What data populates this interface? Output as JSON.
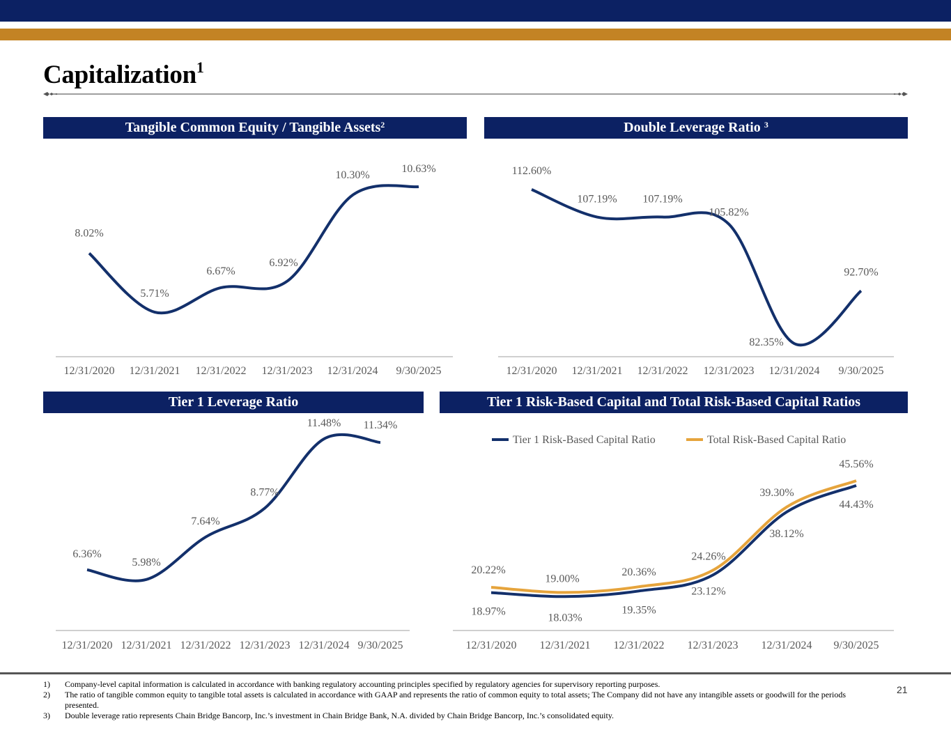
{
  "page": {
    "title": "Capitalization",
    "title_sup": "1",
    "page_number": "21",
    "colors": {
      "navy": "#0c2163",
      "gold": "#c38324",
      "line_navy": "#13306b",
      "line_gold": "#e6a43c"
    }
  },
  "panels": {
    "tce": {
      "title": "Tangible Common Equity / Tangible Assets",
      "sup": "2"
    },
    "dlr": {
      "title": "Double Leverage Ratio",
      "sup": "3"
    },
    "t1l": {
      "title": "Tier 1 Leverage Ratio"
    },
    "rbc": {
      "title": "Tier 1 Risk-Based Capital and Total Risk-Based Capital Ratios"
    }
  },
  "chart_data": [
    {
      "id": "tce",
      "type": "line",
      "title": "Tangible Common Equity / Tangible Assets",
      "categories": [
        "12/31/2020",
        "12/31/2021",
        "12/31/2022",
        "12/31/2023",
        "12/31/2024",
        "9/30/2025"
      ],
      "series": [
        {
          "name": "Tangible Common Equity / Tangible Assets",
          "values": [
            8.02,
            5.71,
            6.67,
            6.92,
            10.3,
            10.63
          ],
          "labels": [
            "8.02%",
            "5.71%",
            "6.67%",
            "6.92%",
            "10.30%",
            "10.63%"
          ]
        }
      ],
      "unit": "%",
      "grid": false,
      "legend": "none"
    },
    {
      "id": "dlr",
      "type": "line",
      "title": "Double Leverage Ratio",
      "categories": [
        "12/31/2020",
        "12/31/2021",
        "12/31/2022",
        "12/31/2023",
        "12/31/2024",
        "9/30/2025"
      ],
      "series": [
        {
          "name": "Double Leverage Ratio",
          "values": [
            112.6,
            107.19,
            107.19,
            105.82,
            82.35,
            92.7
          ],
          "labels": [
            "112.60%",
            "107.19%",
            "107.19%",
            "105.82%",
            "82.35%",
            "92.70%"
          ]
        }
      ],
      "unit": "%",
      "grid": false,
      "legend": "none"
    },
    {
      "id": "t1l",
      "type": "line",
      "title": "Tier 1 Leverage Ratio",
      "categories": [
        "12/31/2020",
        "12/31/2021",
        "12/31/2022",
        "12/31/2023",
        "12/31/2024",
        "9/30/2025"
      ],
      "series": [
        {
          "name": "Tier 1 Leverage Ratio",
          "values": [
            6.36,
            5.98,
            7.64,
            8.77,
            11.48,
            11.34
          ],
          "labels": [
            "6.36%",
            "5.98%",
            "7.64%",
            "8.77%",
            "11.48%",
            "11.34%"
          ]
        }
      ],
      "unit": "%",
      "grid": false,
      "legend": "none"
    },
    {
      "id": "rbc",
      "type": "line",
      "title": "Tier 1 Risk-Based Capital and Total Risk-Based Capital Ratios",
      "categories": [
        "12/31/2020",
        "12/31/2021",
        "12/31/2022",
        "12/31/2023",
        "12/31/2024",
        "9/30/2025"
      ],
      "series": [
        {
          "name": "Tier 1 Risk-Based Capital Ratio",
          "values": [
            18.97,
            18.03,
            19.35,
            23.12,
            38.12,
            44.43
          ],
          "labels": [
            "18.97%",
            "18.03%",
            "19.35%",
            "23.12%",
            "38.12%",
            "44.43%"
          ]
        },
        {
          "name": "Total Risk-Based Capital Ratio",
          "values": [
            20.22,
            19.0,
            20.36,
            24.26,
            39.3,
            45.56
          ],
          "labels": [
            "20.22%",
            "19.00%",
            "20.36%",
            "24.26%",
            "39.30%",
            "45.56%"
          ]
        }
      ],
      "unit": "%",
      "grid": false,
      "legend": "top"
    }
  ],
  "footnotes": [
    {
      "num": "1)",
      "text": "Company-level capital information is calculated in accordance with banking regulatory accounting principles specified by regulatory agencies for supervisory reporting purposes."
    },
    {
      "num": "2)",
      "text": "The ratio of tangible common equity to tangible total assets is calculated in accordance with GAAP and represents the ratio of common equity to total assets; The Company did not have any intangible assets or goodwill for the periods presented."
    },
    {
      "num": "3)",
      "text": "Double leverage ratio represents Chain Bridge Bancorp, Inc.’s investment in Chain Bridge Bank, N.A. divided by Chain Bridge Bancorp, Inc.’s consolidated equity."
    }
  ]
}
